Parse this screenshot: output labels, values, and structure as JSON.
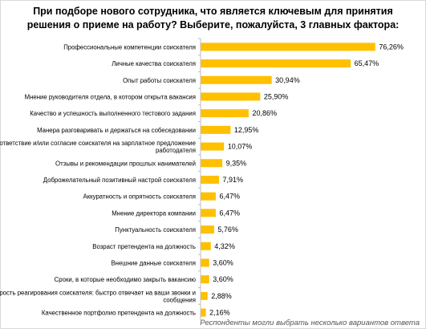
{
  "chart_data": {
    "type": "bar",
    "orientation": "horizontal",
    "title_lines": [
      "При подборе нового сотрудника, что является ключевым для принятия",
      "решения о приеме на работу? Выберите, пожалуйста, 3 главных фактора:"
    ],
    "categories": [
      [
        "Профессиональные компетенции соискателя"
      ],
      [
        "Личные качества соискателя"
      ],
      [
        "Опыт работы соискателя"
      ],
      [
        "Мнение руководителя отдела, в котором открыта вакансия"
      ],
      [
        "Качество и успешность выполненного тестового задания"
      ],
      [
        "Манера разговаривать и держаться на собеседовании"
      ],
      [
        "Соответствие и/или согласие соискателя на зарплатное предложение",
        "работодателя"
      ],
      [
        "Отзывы и рекомендации прошлых нанимателей"
      ],
      [
        "Доброжелательный позитивный настрой соискателя"
      ],
      [
        "Аккуратность и опрятность соискателя"
      ],
      [
        "Мнение директора компании"
      ],
      [
        "Пунктуальность соискателя"
      ],
      [
        "Возраст претендента на должность"
      ],
      [
        "Внешние данные соискателя"
      ],
      [
        "Сроки, в которые необходимо закрыть вакансию"
      ],
      [
        "Скорость реагирования соискателя: быстро отвечает на ваши звонки и",
        "сообщения"
      ],
      [
        "Качественное портфолио претендента на должность"
      ]
    ],
    "values": [
      76.26,
      65.47,
      30.94,
      25.9,
      20.86,
      12.95,
      10.07,
      9.35,
      7.91,
      6.47,
      6.47,
      5.76,
      4.32,
      3.6,
      3.6,
      2.88,
      2.16
    ],
    "value_labels": [
      "76,26%",
      "65,47%",
      "30,94%",
      "25,90%",
      "20,86%",
      "12,95%",
      "10,07%",
      "9,35%",
      "7,91%",
      "6,47%",
      "6,47%",
      "5,76%",
      "4,32%",
      "3,60%",
      "3,60%",
      "2,88%",
      "2,16%"
    ],
    "xlim": [
      0,
      80
    ],
    "bar_color": "#FFC000",
    "grid": false,
    "footnote": "Респонденты могли выбрать несколько вариантов ответа"
  }
}
